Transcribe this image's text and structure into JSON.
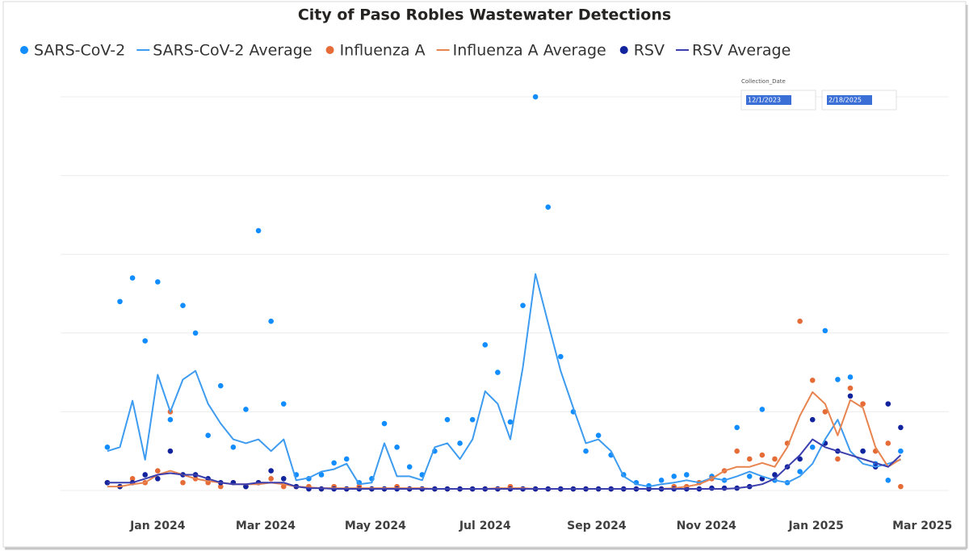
{
  "chart_data": {
    "type": "scatter",
    "title": "City of Paso Robles Wastewater Detections",
    "x": [
      "2023-12-04",
      "2023-12-11",
      "2023-12-18",
      "2023-12-25",
      "2024-01-01",
      "2024-01-08",
      "2024-01-15",
      "2024-01-22",
      "2024-01-29",
      "2024-02-05",
      "2024-02-12",
      "2024-02-19",
      "2024-02-26",
      "2024-03-04",
      "2024-03-11",
      "2024-03-18",
      "2024-03-25",
      "2024-04-01",
      "2024-04-08",
      "2024-04-15",
      "2024-04-22",
      "2024-04-29",
      "2024-05-06",
      "2024-05-13",
      "2024-05-20",
      "2024-05-27",
      "2024-06-03",
      "2024-06-10",
      "2024-06-17",
      "2024-06-24",
      "2024-07-01",
      "2024-07-08",
      "2024-07-15",
      "2024-07-22",
      "2024-07-29",
      "2024-08-05",
      "2024-08-12",
      "2024-08-19",
      "2024-08-26",
      "2024-09-02",
      "2024-09-09",
      "2024-09-16",
      "2024-09-23",
      "2024-09-30",
      "2024-10-07",
      "2024-10-14",
      "2024-10-21",
      "2024-10-28",
      "2024-11-04",
      "2024-11-11",
      "2024-11-18",
      "2024-11-25",
      "2024-12-02",
      "2024-12-09",
      "2024-12-16",
      "2024-12-23",
      "2024-12-30",
      "2025-01-06",
      "2025-01-13",
      "2025-01-20",
      "2025-01-27",
      "2025-02-03",
      "2025-02-10",
      "2025-02-17"
    ],
    "series": [
      {
        "name": "SARS-CoV-2",
        "style": "marker",
        "color": "#118dff",
        "values": [
          0.55,
          2.4,
          2.7,
          1.9,
          2.65,
          0.9,
          2.35,
          2.0,
          0.7,
          1.33,
          0.55,
          1.03,
          3.3,
          2.15,
          1.1,
          0.2,
          0.15,
          0.2,
          0.35,
          0.4,
          0.1,
          0.15,
          0.85,
          0.55,
          0.3,
          0.2,
          0.5,
          0.9,
          0.6,
          0.9,
          1.85,
          1.5,
          0.87,
          2.35,
          5.0,
          3.6,
          1.7,
          1.0,
          0.5,
          0.7,
          0.45,
          0.2,
          0.1,
          0.06,
          0.13,
          0.18,
          0.2,
          0.1,
          0.18,
          0.13,
          0.8,
          0.18,
          1.03,
          0.13,
          0.1,
          0.24,
          0.55,
          2.03,
          1.41,
          1.44,
          0.5,
          0.34,
          0.13,
          0.5
        ]
      },
      {
        "name": "SARS-CoV-2 Average",
        "style": "line",
        "color": "#3d9bf0",
        "values": [
          0.5,
          0.55,
          1.14,
          0.39,
          1.47,
          1.0,
          1.41,
          1.52,
          1.1,
          0.85,
          0.65,
          0.6,
          0.65,
          0.5,
          0.65,
          0.13,
          0.16,
          0.24,
          0.27,
          0.34,
          0.08,
          0.1,
          0.6,
          0.18,
          0.18,
          0.13,
          0.55,
          0.6,
          0.4,
          0.65,
          1.26,
          1.1,
          0.65,
          1.57,
          2.75,
          2.13,
          1.52,
          1.05,
          0.6,
          0.65,
          0.5,
          0.18,
          0.08,
          0.05,
          0.08,
          0.1,
          0.13,
          0.1,
          0.16,
          0.13,
          0.18,
          0.24,
          0.18,
          0.13,
          0.1,
          0.18,
          0.34,
          0.65,
          0.9,
          0.5,
          0.34,
          0.3,
          0.34,
          0.39
        ]
      },
      {
        "name": "Influenza A",
        "style": "marker",
        "color": "#e66c37",
        "values": [
          0.1,
          0.05,
          0.15,
          0.1,
          0.25,
          1.0,
          0.1,
          0.15,
          0.1,
          0.05,
          0.1,
          0.05,
          0.1,
          0.15,
          0.05,
          0.05,
          0.05,
          0.02,
          0.05,
          0.02,
          0.05,
          0.02,
          0.02,
          0.05,
          0.02,
          0.02,
          0.02,
          0.02,
          0.02,
          0.02,
          0.02,
          0.02,
          0.05,
          0.02,
          0.02,
          0.02,
          0.02,
          0.02,
          0.02,
          0.02,
          0.02,
          0.02,
          0.02,
          0.02,
          0.02,
          0.05,
          0.05,
          0.1,
          0.15,
          0.25,
          0.5,
          0.4,
          0.45,
          0.4,
          0.6,
          2.15,
          1.4,
          1.0,
          0.4,
          1.3,
          1.1,
          0.5,
          0.6,
          0.05
        ]
      },
      {
        "name": "Influenza A Average",
        "style": "line",
        "color": "#e8844f",
        "values": [
          0.05,
          0.05,
          0.08,
          0.1,
          0.2,
          0.25,
          0.2,
          0.15,
          0.12,
          0.1,
          0.08,
          0.08,
          0.08,
          0.1,
          0.08,
          0.05,
          0.04,
          0.03,
          0.03,
          0.03,
          0.03,
          0.03,
          0.03,
          0.03,
          0.03,
          0.03,
          0.02,
          0.02,
          0.02,
          0.02,
          0.02,
          0.03,
          0.03,
          0.03,
          0.02,
          0.02,
          0.02,
          0.02,
          0.02,
          0.02,
          0.02,
          0.02,
          0.02,
          0.02,
          0.02,
          0.03,
          0.05,
          0.08,
          0.15,
          0.25,
          0.3,
          0.3,
          0.35,
          0.3,
          0.55,
          0.95,
          1.25,
          1.1,
          0.7,
          1.15,
          1.05,
          0.55,
          0.3,
          0.4
        ]
      },
      {
        "name": "RSV",
        "style": "marker",
        "color": "#12239e",
        "values": [
          0.1,
          0.05,
          0.1,
          0.2,
          0.15,
          0.5,
          0.2,
          0.2,
          0.15,
          0.1,
          0.1,
          0.05,
          0.1,
          0.25,
          0.15,
          0.05,
          0.02,
          0.02,
          0.02,
          0.02,
          0.02,
          0.02,
          0.02,
          0.02,
          0.02,
          0.02,
          0.02,
          0.02,
          0.02,
          0.02,
          0.02,
          0.02,
          0.02,
          0.02,
          0.02,
          0.02,
          0.02,
          0.02,
          0.02,
          0.02,
          0.02,
          0.02,
          0.02,
          0.02,
          0.02,
          0.02,
          0.02,
          0.02,
          0.03,
          0.03,
          0.03,
          0.05,
          0.15,
          0.2,
          0.3,
          0.4,
          0.9,
          0.6,
          0.5,
          1.2,
          0.5,
          0.3,
          1.1,
          0.8
        ]
      },
      {
        "name": "RSV Average",
        "style": "line",
        "color": "#3c3fae",
        "values": [
          0.1,
          0.1,
          0.1,
          0.15,
          0.2,
          0.22,
          0.2,
          0.2,
          0.15,
          0.1,
          0.08,
          0.08,
          0.1,
          0.1,
          0.1,
          0.05,
          0.03,
          0.03,
          0.02,
          0.02,
          0.02,
          0.02,
          0.02,
          0.02,
          0.02,
          0.02,
          0.02,
          0.02,
          0.02,
          0.02,
          0.02,
          0.02,
          0.02,
          0.02,
          0.02,
          0.02,
          0.02,
          0.02,
          0.02,
          0.02,
          0.02,
          0.02,
          0.02,
          0.02,
          0.02,
          0.02,
          0.02,
          0.02,
          0.02,
          0.02,
          0.03,
          0.05,
          0.08,
          0.15,
          0.3,
          0.45,
          0.65,
          0.55,
          0.5,
          0.45,
          0.4,
          0.35,
          0.3,
          0.45
        ]
      }
    ],
    "xlim": [
      "2023-11-08",
      "2025-03-18"
    ],
    "xticks": [
      {
        "value": "2024-01-01",
        "label": "Jan 2024"
      },
      {
        "value": "2024-03-01",
        "label": "Mar 2024"
      },
      {
        "value": "2024-05-01",
        "label": "May 2024"
      },
      {
        "value": "2024-07-01",
        "label": "Jul 2024"
      },
      {
        "value": "2024-09-01",
        "label": "Sep 2024"
      },
      {
        "value": "2024-11-01",
        "label": "Nov 2024"
      },
      {
        "value": "2025-01-01",
        "label": "Jan 2025"
      },
      {
        "value": "2025-03-01",
        "label": "Mar 2025"
      }
    ],
    "ylim": [
      0,
      5.2
    ],
    "yticks": [
      0,
      1,
      2,
      3,
      4,
      5
    ],
    "grid": true,
    "legend": "top"
  },
  "slicer": {
    "label": "Collection_Date",
    "start": "12/1/2023",
    "end": "2/18/2025"
  }
}
